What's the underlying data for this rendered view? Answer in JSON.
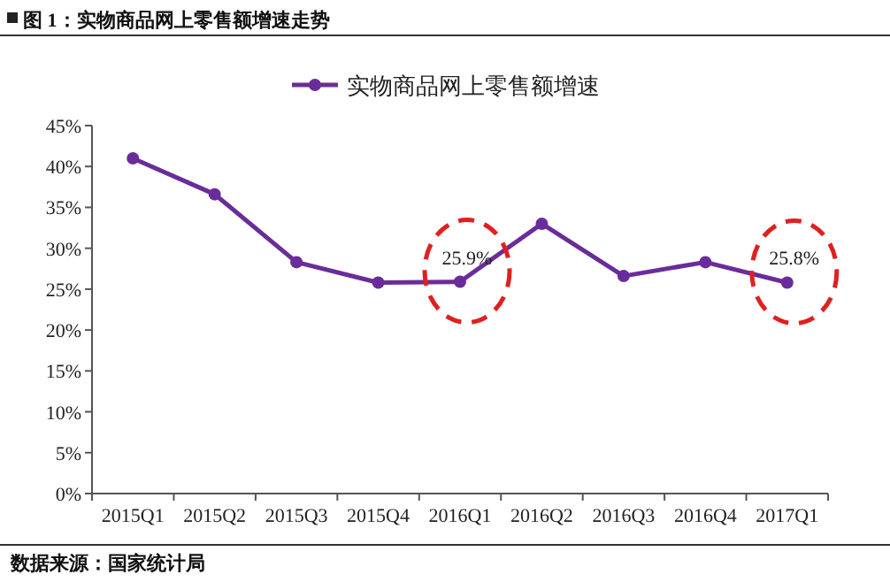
{
  "chart_data": {
    "type": "line",
    "title": "图 1：实物商品网上零售额增速走势",
    "categories": [
      "2015Q1",
      "2015Q2",
      "2015Q3",
      "2015Q4",
      "2016Q1",
      "2016Q2",
      "2016Q3",
      "2016Q4",
      "2017Q1"
    ],
    "series": [
      {
        "name": "实物商品网上零售额增速",
        "color": "#6a2c9a",
        "values": [
          41.0,
          36.6,
          28.3,
          25.8,
          25.9,
          33.0,
          26.6,
          28.3,
          25.8
        ],
        "value_labels": [
          null,
          null,
          null,
          null,
          "25.9%",
          null,
          null,
          null,
          "25.8%"
        ]
      }
    ],
    "ylim": [
      0,
      45
    ],
    "yticks": [
      {
        "value": 0,
        "label": "0%"
      },
      {
        "value": 5,
        "label": "5%"
      },
      {
        "value": 10,
        "label": "10%"
      },
      {
        "value": 15,
        "label": "15%"
      },
      {
        "value": 20,
        "label": "20%"
      },
      {
        "value": 25,
        "label": "25%"
      },
      {
        "value": 30,
        "label": "30%"
      },
      {
        "value": 35,
        "label": "35%"
      },
      {
        "value": 40,
        "label": "40%"
      },
      {
        "value": 45,
        "label": "45%"
      }
    ],
    "marker": "circle",
    "legend": "top",
    "grid": false,
    "annotations": [
      "数据来源：国家统计局"
    ]
  }
}
